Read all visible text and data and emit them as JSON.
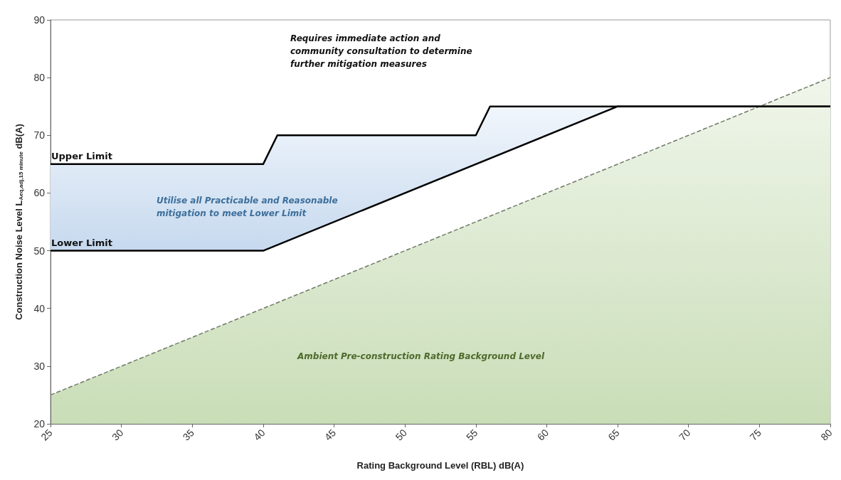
{
  "chart_data": {
    "type": "line",
    "xlabel": "Rating Background Level (RBL) dB(A)",
    "ylabel": "Construction Noise Level L$_{Aeq,adj,15 minute}$ dB(A)",
    "xlim": [
      25,
      80
    ],
    "xticks": [
      25,
      30,
      35,
      40,
      45,
      50,
      55,
      60,
      65,
      70,
      75,
      80
    ],
    "ylim": [
      20,
      90
    ],
    "yticks": [
      20,
      30,
      40,
      50,
      60,
      70,
      80,
      90
    ],
    "grid": false,
    "legend": false,
    "marker": "none",
    "series": [
      {
        "name": "Upper Limit",
        "color": "#000000",
        "x": [
          25,
          40,
          41,
          55,
          56,
          65,
          80
        ],
        "values": [
          65,
          65,
          70,
          70,
          75,
          75,
          75
        ],
        "lower": [
          50,
          50,
          51,
          65,
          66,
          75,
          75
        ],
        "upper": [
          65,
          65,
          70,
          70,
          75,
          75,
          75
        ]
      },
      {
        "name": "Lower Limit",
        "color": "#000000",
        "x": [
          25,
          40,
          65,
          80
        ],
        "values": [
          50,
          50,
          75,
          75
        ]
      },
      {
        "type": "area",
        "color": "#9cc27c",
        "line_style": "dashed",
        "x": [
          25,
          80
        ],
        "values": [
          25,
          80
        ]
      }
    ],
    "annotations": [
      "Requires immediate action and\ncommunity consultation to determine\nfurther mitigation measures",
      "Utilise all Practicable and Reasonable\nmitigation to meet Lower Limit",
      "Ambient Pre-construction Rating Background Level"
    ]
  }
}
